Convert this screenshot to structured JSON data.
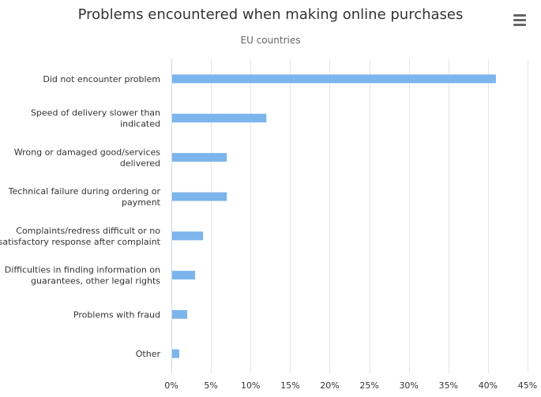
{
  "chart_data": {
    "type": "bar",
    "orientation": "horizontal",
    "title": "Problems encountered when making online purchases",
    "subtitle": "EU countries",
    "categories": [
      [
        "Did not encounter problem"
      ],
      [
        "Speed of delivery slower than",
        "indicated"
      ],
      [
        "Wrong or damaged good/services",
        "delivered"
      ],
      [
        "Technical failure during ordering or",
        "payment"
      ],
      [
        "Complaints/redress difficult or no",
        "satisfactory response after complaint"
      ],
      [
        "Difficulties in finding information on",
        "guarantees, other legal rights"
      ],
      [
        "Problems with fraud"
      ],
      [
        "Other"
      ]
    ],
    "values": [
      41,
      12,
      7,
      7,
      4,
      3,
      2,
      1
    ],
    "xlim": [
      0,
      45
    ],
    "x_ticks": [
      0,
      5,
      10,
      15,
      20,
      25,
      30,
      35,
      40,
      45
    ],
    "tick_suffix": "%",
    "bar_color": "#7cb5ec",
    "gridlines": true,
    "legend": "none"
  },
  "menu": {
    "icon": "hamburger-menu-icon"
  }
}
